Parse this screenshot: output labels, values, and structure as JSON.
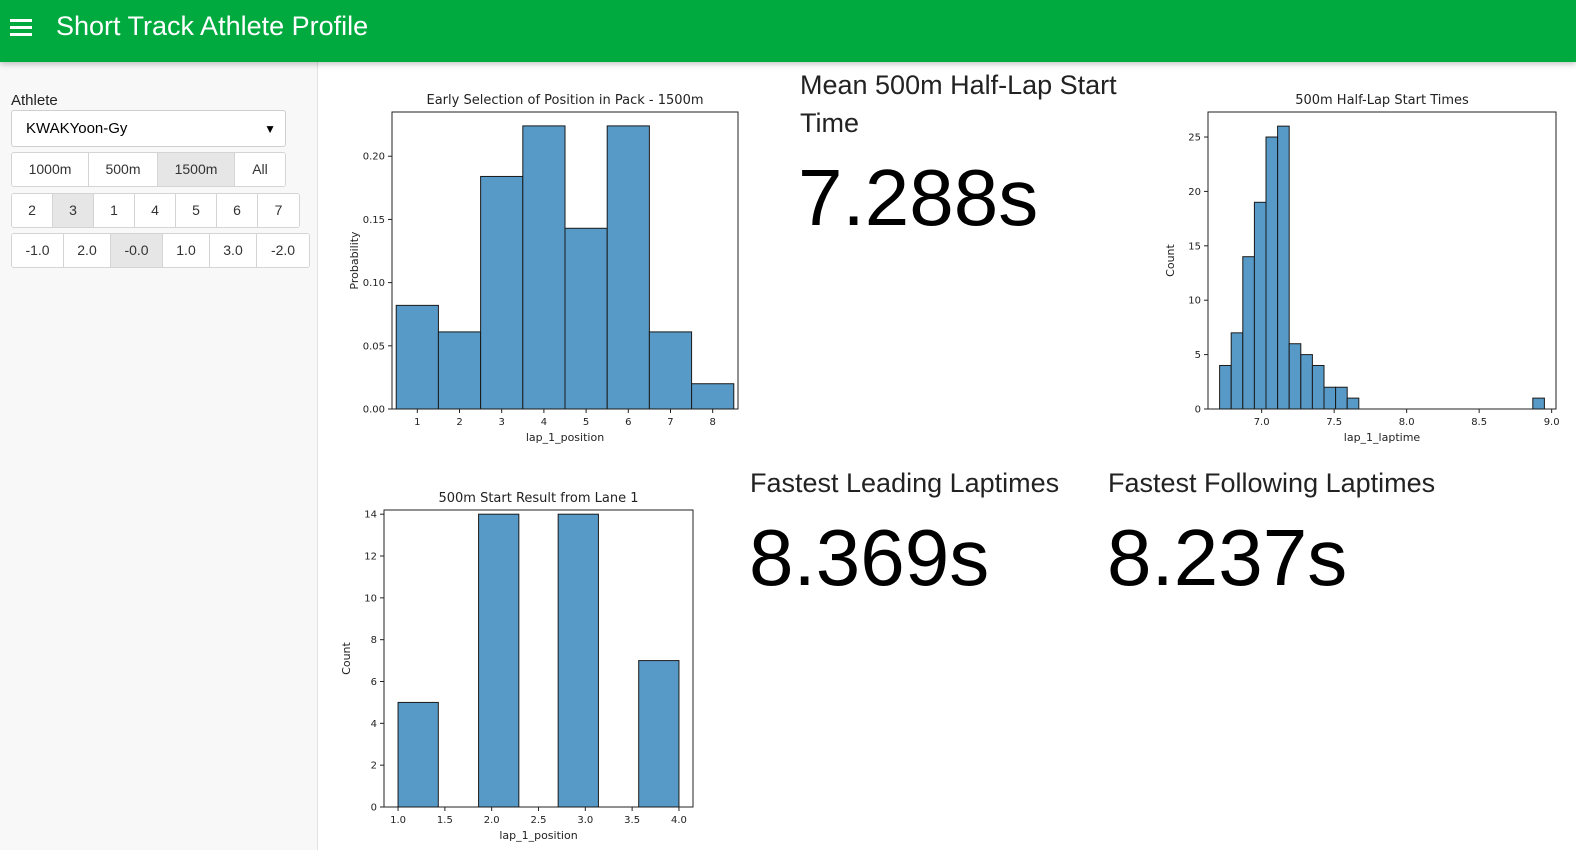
{
  "header": {
    "title": "Short Track Athlete Profile",
    "menu_icon": "hamburger-menu-icon"
  },
  "sidebar": {
    "athlete_label": "Athlete",
    "athlete_value": "KWAKYoon-Gy",
    "distance_options": [
      "1000m",
      "500m",
      "1500m",
      "All"
    ],
    "distance_selected": "1500m",
    "position_options": [
      "2",
      "3",
      "1",
      "4",
      "5",
      "6",
      "7"
    ],
    "position_selected": "3",
    "lane_options": [
      "-1.0",
      "2.0",
      "-0.0",
      "1.0",
      "3.0",
      "-2.0"
    ],
    "lane_selected": "-0.0"
  },
  "kpis": {
    "mean_start": {
      "title": "Mean 500m Half-Lap Start Time",
      "value": "7.288s"
    },
    "fastest_leading": {
      "title": "Fastest Leading Laptimes",
      "value": "8.369s"
    },
    "fastest_following": {
      "title": "Fastest Following Laptimes",
      "value": "8.237s"
    }
  },
  "colors": {
    "header": "#00aa3f",
    "bar_fill": "#5799c7",
    "bar_edge": "#1a1a1a"
  },
  "chart_data": [
    {
      "type": "bar",
      "title": "Early Selection of Position in Pack - 1500m",
      "xlabel": "lap_1_position",
      "ylabel": "Probability",
      "categories": [
        "1",
        "2",
        "3",
        "4",
        "5",
        "6",
        "7",
        "8"
      ],
      "values": [
        0.082,
        0.061,
        0.184,
        0.224,
        0.143,
        0.224,
        0.061,
        0.02
      ],
      "xticks": [
        1,
        2,
        3,
        4,
        5,
        6,
        7,
        8
      ],
      "yticks": [
        "0.00",
        "0.05",
        "0.10",
        "0.15",
        "0.20"
      ],
      "ylim": [
        0,
        0.235
      ]
    },
    {
      "type": "bar",
      "title": "500m Half-Lap Start Times",
      "xlabel": "lap_1_laptime",
      "ylabel": "Count",
      "bins": [
        [
          6.71,
          6.79,
          4
        ],
        [
          6.79,
          6.87,
          7
        ],
        [
          6.87,
          6.95,
          14
        ],
        [
          6.95,
          7.03,
          19
        ],
        [
          7.03,
          7.11,
          25
        ],
        [
          7.11,
          7.19,
          26
        ],
        [
          7.19,
          7.27,
          6
        ],
        [
          7.27,
          7.35,
          5
        ],
        [
          7.35,
          7.43,
          4
        ],
        [
          7.43,
          7.51,
          2
        ],
        [
          7.51,
          7.59,
          2
        ],
        [
          7.59,
          7.67,
          1
        ],
        [
          8.87,
          8.95,
          1
        ]
      ],
      "xticks": [
        "7.0",
        "7.5",
        "8.0",
        "8.5",
        "9.0"
      ],
      "yticks": [
        "0",
        "5",
        "10",
        "15",
        "20",
        "25"
      ],
      "xlim": [
        6.63,
        9.03
      ],
      "ylim": [
        0,
        27.3
      ]
    },
    {
      "type": "bar",
      "title": "500m Start Result from Lane 1",
      "xlabel": "lap_1_position",
      "ylabel": "Count",
      "bins": [
        [
          1.0,
          1.43,
          5
        ],
        [
          1.86,
          2.29,
          14
        ],
        [
          2.71,
          3.14,
          14
        ],
        [
          3.57,
          4.0,
          7
        ]
      ],
      "xticks": [
        "1.0",
        "1.5",
        "2.0",
        "2.5",
        "3.0",
        "3.5",
        "4.0"
      ],
      "yticks": [
        "0",
        "2",
        "4",
        "6",
        "8",
        "10",
        "12",
        "14"
      ],
      "xlim": [
        0.85,
        4.15
      ],
      "ylim": [
        0,
        14.2
      ]
    }
  ]
}
